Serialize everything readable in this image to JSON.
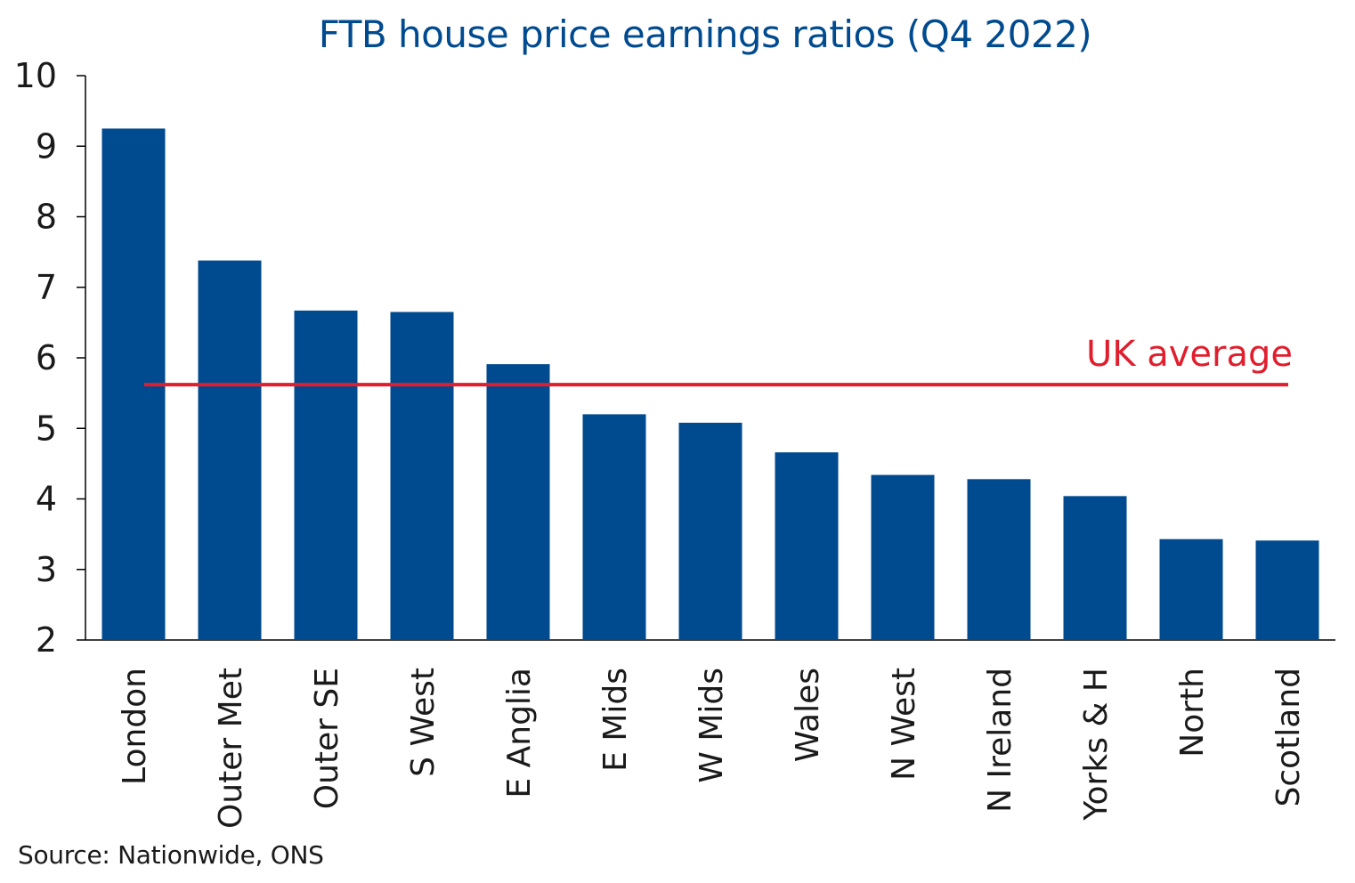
{
  "chart_data": {
    "type": "bar",
    "title": "FTB house price earnings ratios (Q4 2022)",
    "categories": [
      "London",
      "Outer Met",
      "Outer SE",
      "S West",
      "E Anglia",
      "E Mids",
      "W Mids",
      "Wales",
      "N West",
      "N Ireland",
      "Yorks & H",
      "North",
      "Scotland"
    ],
    "values": [
      9.25,
      7.38,
      6.67,
      6.65,
      5.91,
      5.2,
      5.08,
      4.66,
      4.34,
      4.28,
      4.04,
      3.43,
      3.41
    ],
    "ylim": [
      2,
      10
    ],
    "yticks": [
      "2",
      "3",
      "4",
      "5",
      "6",
      "7",
      "8",
      "9",
      "10"
    ],
    "reference_line": {
      "label": "UK average",
      "value": 5.62,
      "color": "#e01e2e"
    },
    "bar_color": "#004a8f",
    "title_color": "#004a8f",
    "grid": false,
    "source": "Source: Nationwide, ONS"
  }
}
